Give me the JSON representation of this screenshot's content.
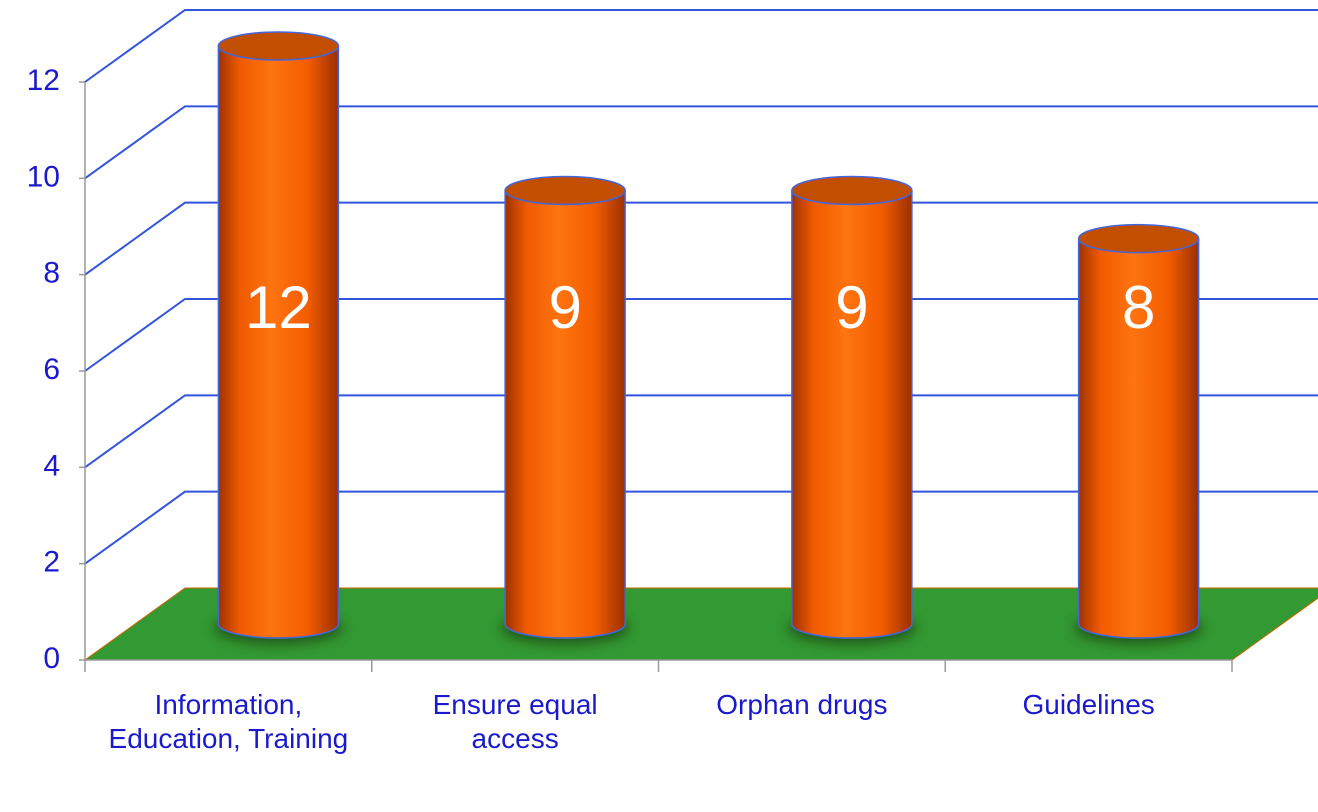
{
  "chart_data": {
    "type": "bar",
    "categories": [
      "Information, Education, Training",
      "Ensure equal access",
      "Orphan drugs",
      "Guidelines"
    ],
    "values": [
      12,
      9,
      9,
      8
    ],
    "color": "#ff6600",
    "floor_color": "#339933",
    "grid_color": "#3355dd",
    "ylim": [
      0,
      12
    ],
    "yticks": [
      0,
      2,
      4,
      6,
      8,
      10,
      12
    ],
    "grid": true
  }
}
